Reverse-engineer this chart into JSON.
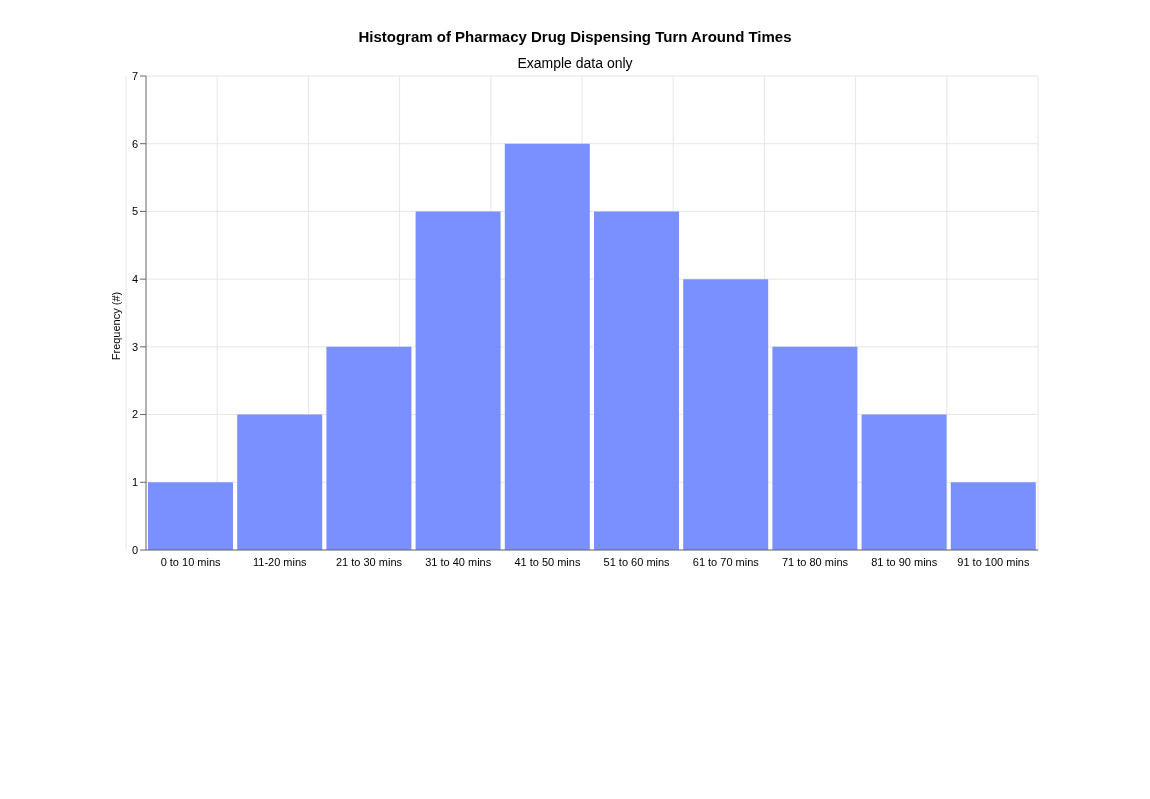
{
  "chart_data": {
    "type": "bar",
    "title": "Histogram of Pharmacy Drug Dispensing Turn Around Times",
    "subtitle": "Example data only",
    "ylabel": "Frequency (#)",
    "categories": [
      "0 to 10 mins",
      "11-20 mins",
      "21 to 30 mins",
      "31 to 40 mins",
      "41 to 50 mins",
      "51 to 60 mins",
      "61 to 70 mins",
      "71 to 80 mins",
      "81 to 90 mins",
      "91 to 100 mins"
    ],
    "values": [
      1,
      2,
      3,
      5,
      6,
      5,
      4,
      3,
      2,
      1
    ],
    "color": "#7b90ff",
    "ylim": [
      0,
      7
    ],
    "yticks": [
      0,
      1,
      2,
      3,
      4,
      5,
      6,
      7
    ],
    "grid": true
  }
}
